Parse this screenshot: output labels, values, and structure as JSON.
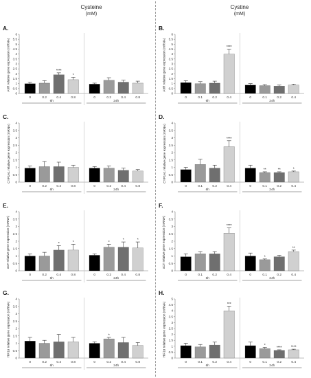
{
  "header": {
    "left_title": "Cysteine",
    "left_unit": "(mM)",
    "right_title": "Cystine",
    "right_unit": "(mM)"
  },
  "colors": {
    "levels": [
      "#000000",
      "#9a9a9a",
      "#6f6f6f",
      "#d0d0d0"
    ]
  },
  "chart_data": [
    {
      "type": "bar",
      "panel": "A.",
      "compound": "Cysteine",
      "ylabel": "AhR relative gene expression (mRNA)",
      "ylim": [
        0,
        6
      ],
      "yticks": [
        "0",
        "0.5",
        "1",
        "1.5",
        "2",
        "2.5",
        "3",
        "3.5",
        "4",
        "4.5",
        "5",
        "5.5",
        "6"
      ],
      "groups": [
        {
          "label": "6h",
          "categories": [
            "0",
            "0.2",
            "0.4",
            "0.8"
          ],
          "values": [
            1.0,
            1.05,
            1.9,
            1.4
          ],
          "errors": [
            0.15,
            0.25,
            0.2,
            0.25
          ],
          "significance": [
            "",
            "",
            "****",
            "*"
          ]
        },
        {
          "label": "24h",
          "categories": [
            "0",
            "0.2",
            "0.4",
            "0.8"
          ],
          "values": [
            0.95,
            1.35,
            1.15,
            1.05
          ],
          "errors": [
            0.1,
            0.25,
            0.2,
            0.2
          ],
          "significance": [
            "",
            "",
            "",
            ""
          ]
        }
      ]
    },
    {
      "type": "bar",
      "panel": "B.",
      "compound": "Cystine",
      "ylabel": "AhR relative gene expression (mRNA)",
      "ylim": [
        0,
        6
      ],
      "yticks": [
        "0",
        "0.5",
        "1",
        "1.5",
        "2",
        "2.5",
        "3",
        "3.5",
        "4",
        "4.5",
        "5",
        "5.5",
        "6"
      ],
      "groups": [
        {
          "label": "6h",
          "categories": [
            "0",
            "0.1",
            "0.2",
            "0.4"
          ],
          "values": [
            1.1,
            1.0,
            1.05,
            4.0
          ],
          "errors": [
            0.2,
            0.2,
            0.2,
            0.5
          ],
          "significance": [
            "",
            "",
            "",
            "****"
          ]
        },
        {
          "label": "24h",
          "categories": [
            "0",
            "0.1",
            "0.2",
            "0.4"
          ],
          "values": [
            0.85,
            0.8,
            0.75,
            0.85
          ],
          "errors": [
            0.15,
            0.1,
            0.1,
            0.1
          ],
          "significance": [
            "",
            "",
            "",
            ""
          ]
        }
      ]
    },
    {
      "type": "bar",
      "panel": "C.",
      "compound": "Cysteine",
      "ylabel": "CYP1A1 relative gene expression (mRNA)",
      "ylim": [
        0,
        4
      ],
      "yticks": [
        "0",
        "0.5",
        "1",
        "1.5",
        "2",
        "2.5",
        "3",
        "3.5",
        "4"
      ],
      "groups": [
        {
          "label": "6h",
          "categories": [
            "0",
            "0.2",
            "0.4",
            "0.8"
          ],
          "values": [
            0.95,
            1.05,
            1.05,
            1.0
          ],
          "errors": [
            0.15,
            0.35,
            0.3,
            0.15
          ],
          "significance": [
            "",
            "",
            "",
            ""
          ]
        },
        {
          "label": "24h",
          "categories": [
            "0",
            "0.2",
            "0.4",
            "0.8"
          ],
          "values": [
            0.95,
            0.95,
            0.8,
            0.75
          ],
          "errors": [
            0.1,
            0.15,
            0.15,
            0.1
          ],
          "significance": [
            "",
            "",
            "",
            ""
          ]
        }
      ]
    },
    {
      "type": "bar",
      "panel": "D.",
      "compound": "Cystine",
      "ylabel": "CYP1A1 relative gene expression (mRNA)",
      "ylim": [
        0,
        4
      ],
      "yticks": [
        "0",
        "0.5",
        "1",
        "1.5",
        "2",
        "2.5",
        "3",
        "3.5",
        "4"
      ],
      "groups": [
        {
          "label": "6h",
          "categories": [
            "0",
            "0.1",
            "0.2",
            "0.4"
          ],
          "values": [
            0.85,
            1.2,
            0.95,
            2.4
          ],
          "errors": [
            0.15,
            0.35,
            0.2,
            0.4
          ],
          "significance": [
            "",
            "",
            "",
            "****"
          ]
        },
        {
          "label": "24h",
          "categories": [
            "0",
            "0.1",
            "0.2",
            "0.4"
          ],
          "values": [
            0.95,
            0.65,
            0.65,
            0.7
          ],
          "errors": [
            0.2,
            0.05,
            0.05,
            0.05
          ],
          "significance": [
            "",
            "**",
            "**",
            "*"
          ]
        }
      ]
    },
    {
      "type": "bar",
      "panel": "E.",
      "compound": "Cysteine",
      "ylabel": "xCT relative gene expression (mRNA)",
      "ylim": [
        0,
        4
      ],
      "yticks": [
        "0",
        "0.5",
        "1",
        "1.5",
        "2",
        "2.5",
        "3",
        "3.5",
        "4"
      ],
      "groups": [
        {
          "label": "6h",
          "categories": [
            "0",
            "0.2",
            "0.4",
            "0.8"
          ],
          "values": [
            1.0,
            1.0,
            1.4,
            1.4
          ],
          "errors": [
            0.15,
            0.25,
            0.3,
            0.4
          ],
          "significance": [
            "",
            "",
            "*",
            "*"
          ]
        },
        {
          "label": "24h",
          "categories": [
            "0",
            "0.2",
            "0.4",
            "0.8"
          ],
          "values": [
            1.05,
            1.6,
            1.6,
            1.55
          ],
          "errors": [
            0.1,
            0.2,
            0.35,
            0.4
          ],
          "significance": [
            "",
            "*",
            "*",
            "*"
          ]
        }
      ]
    },
    {
      "type": "bar",
      "panel": "F.",
      "compound": "Cystine",
      "ylabel": "xCT relative gene expression (mRNA)",
      "ylim": [
        0,
        4
      ],
      "yticks": [
        "0",
        "0.5",
        "1",
        "1.5",
        "2",
        "2.5",
        "3",
        "3.5",
        "4"
      ],
      "groups": [
        {
          "label": "6h",
          "categories": [
            "0",
            "0.1",
            "0.2",
            "0.4"
          ],
          "values": [
            0.95,
            1.15,
            1.15,
            2.55
          ],
          "errors": [
            0.2,
            0.15,
            0.15,
            0.35
          ],
          "significance": [
            "",
            "",
            "",
            "****"
          ]
        },
        {
          "label": "24h",
          "categories": [
            "0",
            "0.1",
            "0.2",
            "0.4"
          ],
          "values": [
            1.0,
            0.75,
            0.95,
            1.3
          ],
          "errors": [
            0.2,
            0.05,
            0.1,
            0.1
          ],
          "significance": [
            "",
            "*",
            "",
            "**"
          ]
        }
      ]
    },
    {
      "type": "bar",
      "panel": "G.",
      "compound": "Cysteine",
      "ylabel": "HIF1α relative gene expression (mRNA)",
      "ylim": [
        0,
        4
      ],
      "yticks": [
        "0",
        "0.5",
        "1",
        "1.5",
        "2",
        "2.5",
        "3",
        "3.5",
        "4"
      ],
      "groups": [
        {
          "label": "6h",
          "categories": [
            "0",
            "0.2",
            "0.4",
            "0.8"
          ],
          "values": [
            1.15,
            1.0,
            1.1,
            1.1
          ],
          "errors": [
            0.25,
            0.2,
            0.5,
            0.3
          ],
          "significance": [
            "",
            "",
            "",
            ""
          ]
        },
        {
          "label": "24h",
          "categories": [
            "0",
            "0.2",
            "0.4",
            "0.8"
          ],
          "values": [
            1.0,
            1.3,
            1.05,
            0.85
          ],
          "errors": [
            0.1,
            0.1,
            0.35,
            0.2
          ],
          "significance": [
            "",
            "*",
            "",
            ""
          ]
        }
      ]
    },
    {
      "type": "bar",
      "panel": "H.",
      "compound": "Cystine",
      "ylabel": "HIF1α relative gene expression (mRNA)",
      "ylim": [
        0,
        5
      ],
      "yticks": [
        "0",
        "0.5",
        "1",
        "1.5",
        "2",
        "2.5",
        "3",
        "3.5",
        "4",
        "4.5",
        "5"
      ],
      "groups": [
        {
          "label": "6h",
          "categories": [
            "0",
            "0.1",
            "0.2",
            "0.4"
          ],
          "values": [
            1.05,
            0.95,
            1.1,
            4.0
          ],
          "errors": [
            0.2,
            0.2,
            0.25,
            0.4
          ],
          "significance": [
            "",
            "",
            "",
            "***"
          ]
        },
        {
          "label": "24h",
          "categories": [
            "0",
            "0.1",
            "0.2",
            "0.4"
          ],
          "values": [
            1.05,
            0.8,
            0.65,
            0.7
          ],
          "errors": [
            0.3,
            0.1,
            0.05,
            0.05
          ],
          "significance": [
            "",
            "*",
            "****",
            "****"
          ]
        }
      ]
    }
  ]
}
